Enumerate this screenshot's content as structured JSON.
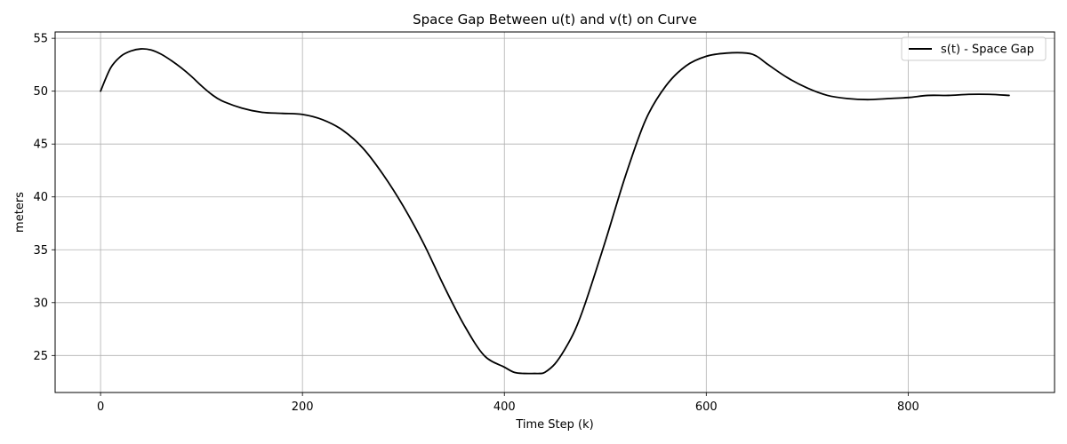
{
  "chart_data": {
    "type": "line",
    "title": "Space Gap Between u(t) and v(t) on Curve",
    "xlabel": "Time Step (k)",
    "ylabel": "meters",
    "xlim": [
      -45,
      945
    ],
    "ylim": [
      21.5,
      55.6
    ],
    "xticks": [
      0,
      200,
      400,
      600,
      800
    ],
    "yticks": [
      25,
      30,
      35,
      40,
      45,
      50,
      55
    ],
    "grid": true,
    "legend": {
      "placement": "top-right",
      "entries": [
        "s(t) - Space Gap"
      ]
    },
    "series": [
      {
        "name": "s(t) - Space Gap",
        "color": "#000000",
        "x": [
          0,
          10,
          20,
          30,
          40,
          50,
          60,
          70,
          80,
          90,
          100,
          110,
          120,
          140,
          160,
          180,
          200,
          220,
          240,
          260,
          280,
          300,
          320,
          340,
          360,
          380,
          400,
          410,
          420,
          430,
          435,
          440,
          450,
          460,
          470,
          480,
          500,
          520,
          540,
          560,
          580,
          600,
          620,
          640,
          650,
          660,
          680,
          700,
          720,
          740,
          760,
          780,
          800,
          820,
          840,
          860,
          880,
          900
        ],
        "y": [
          50.0,
          52.2,
          53.3,
          53.8,
          54.0,
          53.9,
          53.5,
          52.9,
          52.2,
          51.4,
          50.5,
          49.7,
          49.1,
          48.4,
          48.0,
          47.9,
          47.8,
          47.3,
          46.3,
          44.6,
          42.1,
          39.1,
          35.6,
          31.6,
          27.9,
          25.0,
          23.9,
          23.4,
          23.3,
          23.3,
          23.3,
          23.4,
          24.2,
          25.6,
          27.4,
          29.9,
          35.8,
          42.0,
          47.3,
          50.5,
          52.4,
          53.3,
          53.6,
          53.6,
          53.3,
          52.6,
          51.3,
          50.3,
          49.6,
          49.3,
          49.2,
          49.3,
          49.4,
          49.6,
          49.6,
          49.7,
          49.7,
          49.6
        ]
      }
    ]
  }
}
